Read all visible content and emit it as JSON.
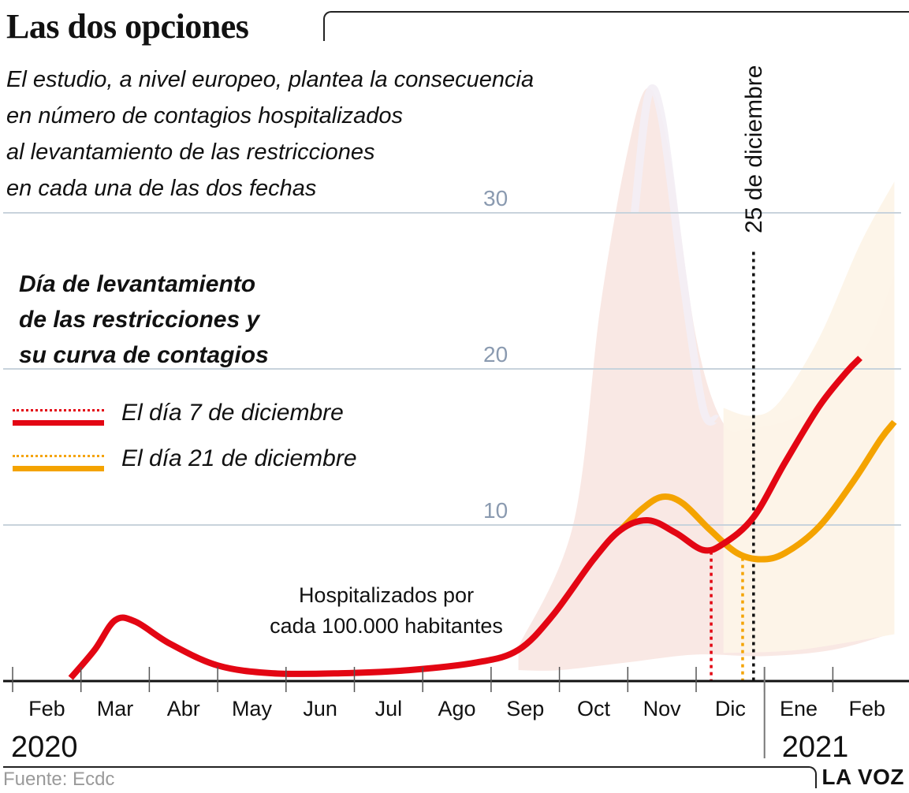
{
  "header": {
    "title": "Las dos opciones",
    "subtitle_lines": [
      "El estudio, a nivel europeo, plantea la consecuencia",
      "en número de contagios hospitalizados",
      "al levantamiento de las restricciones",
      "en cada una de las dos fechas"
    ]
  },
  "legend": {
    "title_lines": [
      "Día de levantamiento",
      "de las restricciones y",
      "su curva de contagios"
    ],
    "items": [
      {
        "label": "El día 7 de diciembre",
        "color": "#e30613"
      },
      {
        "label": "El día 21 de diciembre",
        "color": "#f4a300"
      }
    ]
  },
  "annotation": {
    "lines": [
      "Hospitalizados por",
      "cada 100.000 habitantes"
    ],
    "marker_label": "25 de diciembre"
  },
  "footer": {
    "source": "Fuente: Ecdc",
    "brand": "LA VOZ"
  },
  "colors": {
    "red": "#e30613",
    "orange": "#f4a300",
    "band_red": "#f9e7e3",
    "band_orange": "#fdf4e8",
    "band_violet": "#f3eef5",
    "grid": "#c8d3dc",
    "tick_label": "#8a9ab0"
  },
  "chart_data": {
    "type": "line",
    "title": "Las dos opciones",
    "ylabel": "Hospitalizados por cada 100.000 habitantes",
    "xlabel": "",
    "ylim": [
      0,
      30
    ],
    "yticks": [
      10,
      20,
      30
    ],
    "grid": true,
    "legend_placement": "left",
    "x_unit": "months since 2020-02-01",
    "xlim": [
      0,
      12.9
    ],
    "xticks": [
      {
        "label": "Feb",
        "x": 0.5
      },
      {
        "label": "Mar",
        "x": 1.5
      },
      {
        "label": "Abr",
        "x": 2.5
      },
      {
        "label": "May",
        "x": 3.5
      },
      {
        "label": "Jun",
        "x": 4.5
      },
      {
        "label": "Jul",
        "x": 5.5
      },
      {
        "label": "Ago",
        "x": 6.5
      },
      {
        "label": "Sep",
        "x": 7.5
      },
      {
        "label": "Oct",
        "x": 8.5
      },
      {
        "label": "Nov",
        "x": 9.5
      },
      {
        "label": "Dic",
        "x": 10.5
      },
      {
        "label": "Ene",
        "x": 11.5
      },
      {
        "label": "Feb",
        "x": 12.5
      }
    ],
    "tick_marks": [
      0,
      1,
      2,
      3,
      4,
      5,
      6,
      7,
      8,
      9,
      10,
      11,
      12
    ],
    "years": [
      {
        "label": "2020",
        "x": 0
      },
      {
        "label": "2021",
        "x": 11
      }
    ],
    "year_divider_x": 11,
    "vertical_markers": [
      {
        "name": "7 de diciembre",
        "x": 10.22,
        "top": 8.3,
        "color": "#e30613"
      },
      {
        "name": "21 de diciembre",
        "x": 10.68,
        "top": 7.9,
        "color": "#f4a300"
      },
      {
        "name": "25 de diciembre",
        "x": 10.84,
        "top": 27.5,
        "color": "#111111"
      }
    ],
    "series": [
      {
        "name": "El día 7 de diciembre",
        "color": "#e30613",
        "points": [
          [
            0.85,
            0.2
          ],
          [
            1.2,
            2.0
          ],
          [
            1.5,
            3.9
          ],
          [
            1.8,
            3.8
          ],
          [
            2.3,
            2.4
          ],
          [
            3.0,
            1.0
          ],
          [
            3.8,
            0.5
          ],
          [
            4.8,
            0.5
          ],
          [
            5.8,
            0.7
          ],
          [
            6.8,
            1.2
          ],
          [
            7.4,
            2.0
          ],
          [
            7.9,
            4.2
          ],
          [
            8.5,
            7.8
          ],
          [
            8.9,
            9.7
          ],
          [
            9.3,
            10.3
          ],
          [
            9.7,
            9.5
          ],
          [
            10.1,
            8.4
          ],
          [
            10.4,
            8.8
          ],
          [
            10.84,
            10.5
          ],
          [
            11.3,
            14.0
          ],
          [
            11.8,
            17.6
          ],
          [
            12.2,
            19.8
          ],
          [
            12.4,
            20.7
          ]
        ]
      },
      {
        "name": "El día 21 de diciembre",
        "color": "#f4a300",
        "points": [
          [
            8.9,
            9.7
          ],
          [
            9.2,
            11.0
          ],
          [
            9.5,
            11.8
          ],
          [
            9.8,
            11.4
          ],
          [
            10.2,
            9.7
          ],
          [
            10.6,
            8.2
          ],
          [
            10.95,
            7.8
          ],
          [
            11.3,
            8.2
          ],
          [
            11.8,
            9.9
          ],
          [
            12.3,
            12.8
          ],
          [
            12.7,
            15.5
          ],
          [
            12.9,
            16.6
          ]
        ]
      }
    ],
    "bands": [
      {
        "name": "uncertainty-7-dic",
        "color": "#f9e7e3",
        "upper": [
          [
            7.4,
            2.2
          ],
          [
            8.2,
            10
          ],
          [
            8.6,
            24
          ],
          [
            9.0,
            34
          ],
          [
            9.3,
            38
          ],
          [
            9.6,
            34
          ],
          [
            10.0,
            22
          ],
          [
            10.4,
            16.5
          ],
          [
            10.8,
            16.2
          ],
          [
            11.4,
            16.8
          ],
          [
            12.0,
            18.5
          ],
          [
            12.5,
            21.5
          ],
          [
            12.9,
            26
          ]
        ],
        "lower": [
          [
            12.9,
            3.1
          ],
          [
            12.0,
            2.0
          ],
          [
            11.0,
            1.6
          ],
          [
            10.0,
            1.7
          ],
          [
            9.0,
            1.2
          ],
          [
            8.0,
            0.7
          ],
          [
            7.4,
            0.7
          ]
        ]
      },
      {
        "name": "uncertainty-21-dic",
        "color": "#fdf4e8",
        "upper": [
          [
            10.4,
            17.5
          ],
          [
            10.8,
            17.0
          ],
          [
            11.2,
            17.8
          ],
          [
            11.8,
            22
          ],
          [
            12.4,
            28
          ],
          [
            12.9,
            32
          ]
        ],
        "lower": [
          [
            12.9,
            3.0
          ],
          [
            11.5,
            2.0
          ],
          [
            10.4,
            1.8
          ]
        ]
      }
    ]
  }
}
